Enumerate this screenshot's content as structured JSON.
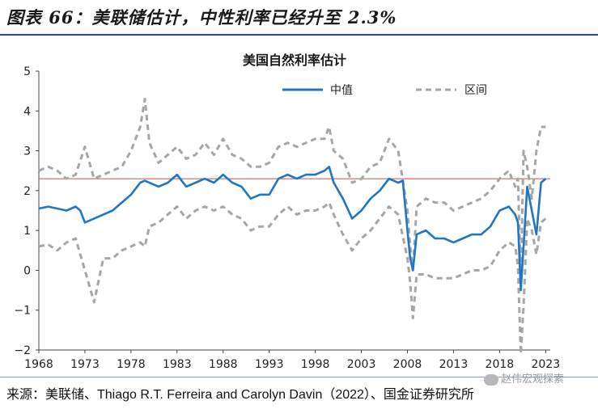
{
  "page": {
    "header_title": "图表 66：美联储估计，中性利率已经升至 2.3%",
    "source_text": "来源：美联储、Thiago R.T. Ferreira and Carolyn Davin（2022）、国金证券研究所",
    "watermark": "赵伟宏观探索"
  },
  "colors": {
    "median": "#1f77c4",
    "range": "#a6a6a6",
    "refline": "#c0504d",
    "rule": "#1f4e96"
  },
  "chart_data": {
    "type": "line",
    "title": "美国自然利率估计",
    "legend_position": "top-right",
    "xlim": [
      1968,
      2023.5
    ],
    "ylim": [
      -2,
      5
    ],
    "x_ticks": [
      1968,
      1973,
      1978,
      1983,
      1988,
      1993,
      1998,
      2003,
      2008,
      2013,
      2018,
      2023
    ],
    "y_ticks": [
      -2,
      -1,
      0,
      1,
      2,
      3,
      4,
      5
    ],
    "reference_line": {
      "y": 2.3
    },
    "series": [
      {
        "name": "中值",
        "style": "solid",
        "x": [
          1968,
          1969,
          1970,
          1971,
          1972,
          1972.5,
          1973,
          1974,
          1975,
          1976,
          1977,
          1978,
          1979,
          1979.5,
          1980,
          1981,
          1982,
          1983,
          1984,
          1985,
          1986,
          1987,
          1988,
          1989,
          1990,
          1991,
          1992,
          1993,
          1994,
          1995,
          1996,
          1997,
          1998,
          1999,
          1999.5,
          2000,
          2001,
          2002,
          2003,
          2004,
          2005,
          2006,
          2007,
          2007.5,
          2008,
          2008.3,
          2008.6,
          2009,
          2010,
          2011,
          2012,
          2013,
          2014,
          2015,
          2016,
          2017,
          2018,
          2019,
          2019.7,
          2020,
          2020.3,
          2020.6,
          2021,
          2021.5,
          2022,
          2022.5,
          2023
        ],
        "y": [
          1.55,
          1.6,
          1.55,
          1.5,
          1.6,
          1.5,
          1.2,
          1.3,
          1.4,
          1.5,
          1.7,
          1.9,
          2.2,
          2.25,
          2.2,
          2.1,
          2.2,
          2.4,
          2.1,
          2.2,
          2.3,
          2.2,
          2.4,
          2.2,
          2.1,
          1.8,
          1.9,
          1.9,
          2.3,
          2.4,
          2.3,
          2.4,
          2.4,
          2.5,
          2.6,
          2.2,
          1.8,
          1.3,
          1.5,
          1.8,
          2.0,
          2.3,
          2.2,
          2.25,
          1.0,
          0.3,
          0.0,
          0.9,
          1.0,
          0.8,
          0.8,
          0.7,
          0.8,
          0.9,
          0.9,
          1.1,
          1.5,
          1.6,
          1.4,
          1.2,
          -0.5,
          0.6,
          2.1,
          1.5,
          0.9,
          2.2,
          2.3
        ]
      },
      {
        "name": "区间",
        "style": "dashed",
        "x": [
          1968,
          1969,
          1970,
          1971,
          1972,
          1973,
          1974,
          1975,
          1976,
          1977,
          1978,
          1979,
          1979.5,
          1980,
          1981,
          1982,
          1983,
          1984,
          1985,
          1986,
          1987,
          1988,
          1989,
          1990,
          1991,
          1992,
          1993,
          1994,
          1995,
          1996,
          1997,
          1998,
          1999,
          1999.5,
          2000,
          2001,
          2002,
          2003,
          2004,
          2005,
          2006,
          2007,
          2008,
          2008.3,
          2008.6,
          2009,
          2010,
          2011,
          2012,
          2013,
          2014,
          2015,
          2016,
          2017,
          2018,
          2019,
          2019.7,
          2020,
          2020.3,
          2020.6,
          2021,
          2021.5,
          2022,
          2022.5,
          2023
        ],
        "y": [
          2.5,
          2.6,
          2.5,
          2.3,
          2.4,
          3.1,
          2.3,
          2.4,
          2.5,
          2.6,
          3.0,
          3.6,
          4.3,
          3.2,
          2.7,
          2.9,
          3.1,
          2.8,
          2.9,
          3.2,
          2.9,
          3.3,
          2.9,
          2.8,
          2.6,
          2.6,
          2.7,
          3.1,
          3.2,
          3.1,
          3.2,
          3.3,
          3.3,
          3.6,
          3.0,
          2.8,
          2.2,
          2.3,
          2.6,
          2.7,
          3.3,
          3.0,
          1.5,
          0.6,
          0.0,
          1.6,
          1.8,
          1.7,
          1.7,
          1.5,
          1.6,
          1.7,
          1.8,
          2.0,
          2.3,
          2.5,
          2.1,
          2.3,
          -0.3,
          3.0,
          2.6,
          1.8,
          3.0,
          3.6,
          3.6
        ],
        "y_lower": [
          0.6,
          0.65,
          0.5,
          0.7,
          0.8,
          0.0,
          -0.8,
          0.3,
          0.3,
          0.5,
          0.6,
          0.7,
          0.6,
          1.1,
          1.2,
          1.4,
          1.6,
          1.3,
          1.5,
          1.6,
          1.5,
          1.6,
          1.4,
          1.3,
          1.0,
          1.1,
          1.1,
          1.4,
          1.6,
          1.4,
          1.5,
          1.5,
          1.6,
          1.7,
          1.4,
          0.9,
          0.5,
          0.8,
          1.0,
          1.3,
          1.6,
          1.4,
          0.3,
          -0.3,
          -1.2,
          -0.1,
          -0.1,
          -0.2,
          -0.2,
          -0.2,
          -0.1,
          0.0,
          0.0,
          0.1,
          0.5,
          0.7,
          0.6,
          0.1,
          -2.1,
          -0.9,
          1.3,
          1.0,
          0.4,
          1.2,
          1.3
        ]
      }
    ]
  }
}
